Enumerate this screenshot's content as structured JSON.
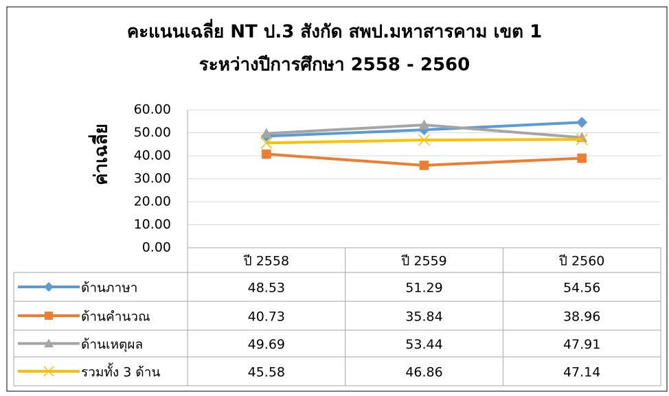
{
  "chart_data": {
    "type": "line",
    "title": "คะแนนเฉลี่ย NT ป.3 สังกัด สพป.มหาสารคาม เขต 1",
    "subtitle": "ระหว่างปีการศึกษา 2558 - 2560",
    "y_label": "ค่าเฉลี่ย",
    "categories": [
      "ปี 2558",
      "ปี 2559",
      "ปี 2560"
    ],
    "series": [
      {
        "name": "ด้านภาษา",
        "color": "#5b9bd5",
        "marker": "diamond",
        "values": [
          48.53,
          51.29,
          54.56
        ]
      },
      {
        "name": "ด้านคำนวณ",
        "color": "#ed7d31",
        "marker": "square",
        "values": [
          40.73,
          35.84,
          38.96
        ]
      },
      {
        "name": "ด้านเหตุผล",
        "color": "#a5a5a5",
        "marker": "triangle",
        "values": [
          49.69,
          53.44,
          47.91
        ]
      },
      {
        "name": "รวมทั้ง 3 ด้าน",
        "color": "#ffc000",
        "marker": "x",
        "values": [
          45.58,
          46.86,
          47.14
        ]
      }
    ],
    "ylim": [
      0,
      60
    ],
    "yticks": [
      {
        "value": 0,
        "label": "0.00"
      },
      {
        "value": 10,
        "label": "10.00"
      },
      {
        "value": 20,
        "label": "20.00"
      },
      {
        "value": 30,
        "label": "30.00"
      },
      {
        "value": 40,
        "label": "40.00"
      },
      {
        "value": 50,
        "label": "50.00"
      },
      {
        "value": 60,
        "label": "60.00"
      }
    ],
    "grid": true
  }
}
